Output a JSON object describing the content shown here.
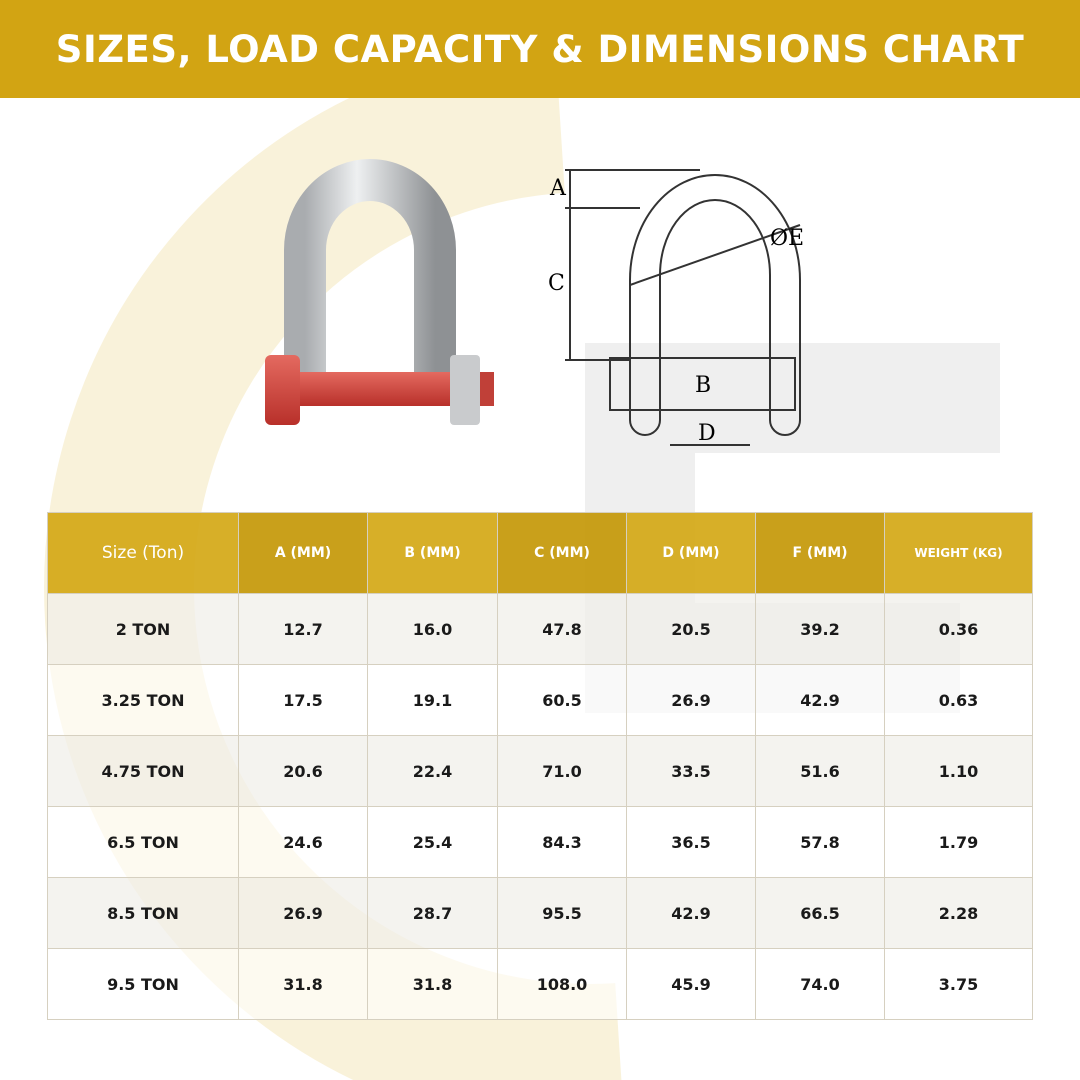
{
  "title": "SIZES, LOAD CAPACITY & DIMENSIONS CHART",
  "diagram": {
    "labels": {
      "a": "A",
      "b": "B",
      "c": "C",
      "d": "D",
      "e": "ØE"
    }
  },
  "table": {
    "headers": [
      "Size (Ton)",
      "A (MM)",
      "B (MM)",
      "C (MM)",
      "D (MM)",
      "F (MM)",
      "WEIGHT (KG)"
    ],
    "rows": [
      [
        "2 TON",
        "12.7",
        "16.0",
        "47.8",
        "20.5",
        "39.2",
        "0.36"
      ],
      [
        "3.25 TON",
        "17.5",
        "19.1",
        "60.5",
        "26.9",
        "42.9",
        "0.63"
      ],
      [
        "4.75 TON",
        "20.6",
        "22.4",
        "71.0",
        "33.5",
        "51.6",
        "1.10"
      ],
      [
        "6.5 TON",
        "24.6",
        "25.4",
        "84.3",
        "36.5",
        "57.8",
        "1.79"
      ],
      [
        "8.5 TON",
        "26.9",
        "28.7",
        "95.5",
        "42.9",
        "66.5",
        "2.28"
      ],
      [
        "9.5 TON",
        "31.8",
        "31.8",
        "108.0",
        "45.9",
        "74.0",
        "3.75"
      ]
    ]
  },
  "colors": {
    "brand": "#D2A413",
    "pin": "#D9443A"
  }
}
